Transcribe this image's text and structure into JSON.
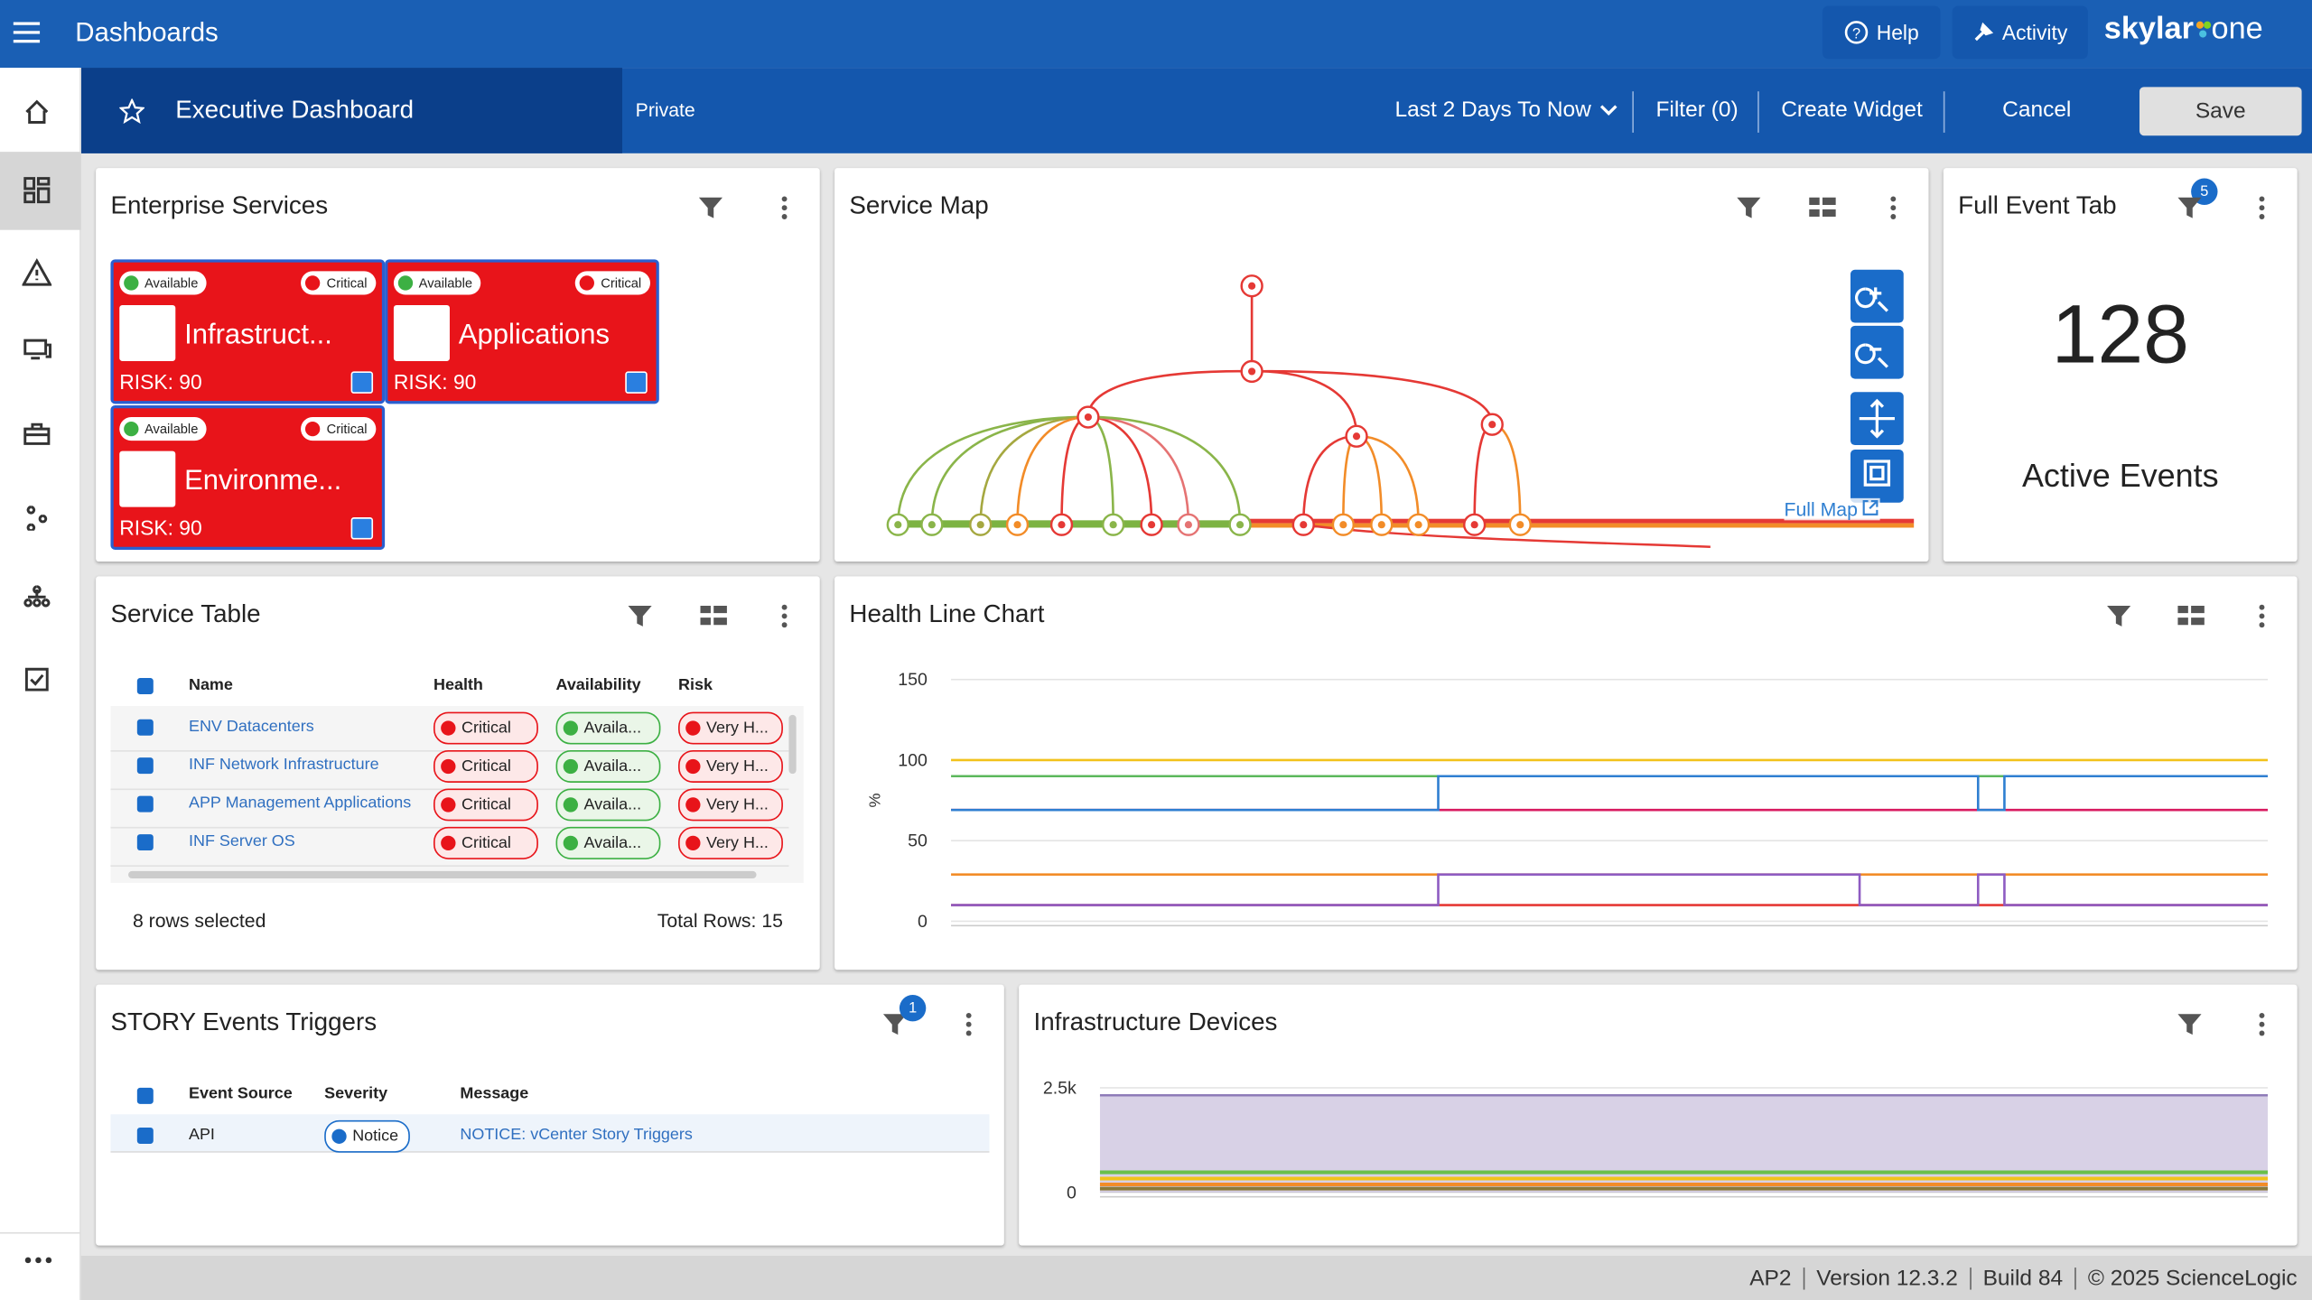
{
  "header": {
    "title": "Dashboards",
    "help": "Help",
    "activity": "Activity",
    "brand": "skylar",
    "brand_suffix": "one"
  },
  "toolbar": {
    "dashboard": "Executive Dashboard",
    "visibility": "Private",
    "time_range": "Last 2 Days To Now",
    "filter": "Filter (0)",
    "create_widget": "Create Widget",
    "cancel": "Cancel",
    "save": "Save"
  },
  "enterprise_services": {
    "title": "Enterprise Services",
    "cards": [
      {
        "availability": "Available",
        "health": "Critical",
        "name": "Infrastruct...",
        "risk": "RISK: 90"
      },
      {
        "availability": "Available",
        "health": "Critical",
        "name": "Applications",
        "risk": "RISK: 90"
      },
      {
        "availability": "Available",
        "health": "Critical",
        "name": "Environme...",
        "risk": "RISK: 90"
      }
    ]
  },
  "service_map": {
    "title": "Service Map",
    "link": "Full Map"
  },
  "full_event_table": {
    "title": "Full Event Tabl",
    "badge": "5",
    "count": 128,
    "label": "Active Events"
  },
  "service_table": {
    "title": "Service Table",
    "columns": [
      "Name",
      "Health",
      "Availability",
      "Risk"
    ],
    "rows": [
      [
        "ENV Datacenters",
        "Critical",
        "Availa...",
        "Very H..."
      ],
      [
        "INF Network Infrastructure",
        "Critical",
        "Availa...",
        "Very H..."
      ],
      [
        "APP Management Applications",
        "Critical",
        "Availa...",
        "Very H..."
      ],
      [
        "INF Server OS",
        "Critical",
        "Availa...",
        "Very H..."
      ]
    ],
    "selected": "8 rows selected",
    "total": "Total Rows: 15"
  },
  "story_events": {
    "title": "STORY Events Triggers",
    "badge": "1",
    "columns": [
      "Event Source",
      "Severity",
      "Message"
    ],
    "rows": [
      [
        "API",
        "Notice",
        "NOTICE: vCenter Story Triggers"
      ]
    ]
  },
  "footer": [
    "AP2",
    "Version 12.3.2",
    "Build 84",
    "© 2025 ScienceLogic"
  ],
  "chart_data": [
    {
      "type": "line",
      "title": "Health Line Chart",
      "y_label": "%",
      "x": [
        0,
        37,
        69,
        78,
        80,
        100
      ],
      "xlim": [
        0,
        100
      ],
      "ylim": [
        0,
        150
      ],
      "yticks": [
        0,
        50,
        100,
        150
      ],
      "grid": true,
      "series": [
        {
          "color": "#e53935",
          "values": [
            10,
            10,
            10,
            10,
            10,
            10
          ]
        },
        {
          "color": "#f28c28",
          "values": [
            29,
            29,
            29,
            29,
            29,
            29
          ]
        },
        {
          "color": "#8e5cc2",
          "values": [
            10,
            29,
            10,
            29,
            10,
            10
          ]
        },
        {
          "color": "#d81b60",
          "values": [
            69,
            69,
            69,
            69,
            69,
            69
          ]
        },
        {
          "color": "#5cb85c",
          "values": [
            90,
            90,
            90,
            90,
            90,
            90
          ]
        },
        {
          "color": "#2f7fd1",
          "values": [
            69,
            90,
            90,
            69,
            90,
            90
          ]
        },
        {
          "color": "#f2c21b",
          "values": [
            100,
            100,
            100,
            100,
            100,
            100
          ]
        }
      ]
    },
    {
      "type": "area",
      "title": "Infrastructure Devices",
      "x": [
        0,
        100
      ],
      "xlim": [
        0,
        100
      ],
      "ylim": [
        0,
        2500
      ],
      "yticks": [
        0,
        {
          "value": 2500,
          "label": "2.5k"
        }
      ],
      "grid": true,
      "series": [
        {
          "color": "#8e7bb8",
          "values": [
            2320,
            2320
          ]
        },
        {
          "color": "#6abf4b",
          "values": [
            480,
            480
          ]
        },
        {
          "color": "#f2c21b",
          "values": [
            330,
            330
          ]
        },
        {
          "color": "#f28c28",
          "values": [
            190,
            190
          ]
        },
        {
          "color": "#8a7a3a",
          "values": [
            90,
            90
          ]
        }
      ]
    }
  ]
}
